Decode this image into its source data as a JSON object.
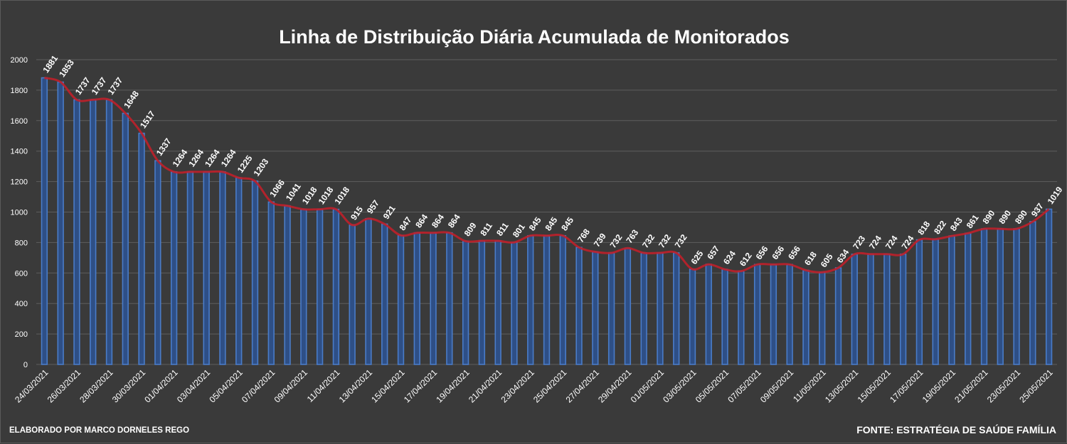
{
  "chart_data": {
    "type": "bar",
    "title": "Linha  de Distribuição Diária Acumulada de Monitorados",
    "xlabel": "",
    "ylabel": "",
    "ylim": [
      0,
      2000
    ],
    "y_ticks": [
      0,
      200,
      400,
      600,
      800,
      1000,
      1200,
      1400,
      1600,
      1800,
      2000
    ],
    "grid": true,
    "bar_color": "#4a7cc8",
    "trend_color": "#c0202a",
    "categories": [
      "24/03/2021",
      "25/03/2021",
      "26/03/2021",
      "27/03/2021",
      "28/03/2021",
      "29/03/2021",
      "30/03/2021",
      "31/03/2021",
      "01/04/2021",
      "02/04/2021",
      "03/04/2021",
      "04/04/2021",
      "05/04/2021",
      "06/04/2021",
      "07/04/2021",
      "08/04/2021",
      "09/04/2021",
      "10/04/2021",
      "11/04/2021",
      "12/04/2021",
      "13/04/2021",
      "14/04/2021",
      "15/04/2021",
      "16/04/2021",
      "17/04/2021",
      "18/04/2021",
      "19/04/2021",
      "20/04/2021",
      "21/04/2021",
      "22/04/2021",
      "23/04/2021",
      "24/04/2021",
      "25/04/2021",
      "26/04/2021",
      "27/04/2021",
      "28/04/2021",
      "29/04/2021",
      "30/04/2021",
      "01/05/2021",
      "02/05/2021",
      "03/05/2021",
      "04/05/2021",
      "05/05/2021",
      "06/05/2021",
      "07/05/2021",
      "08/05/2021",
      "09/05/2021",
      "10/05/2021",
      "11/05/2021",
      "12/05/2021",
      "13/05/2021",
      "14/05/2021",
      "15/05/2021",
      "16/05/2021",
      "17/05/2021",
      "18/05/2021",
      "19/05/2021",
      "20/05/2021",
      "21/05/2021",
      "22/05/2021",
      "23/05/2021",
      "24/05/2021",
      "25/05/2021"
    ],
    "x_tick_labels": [
      "24/03/2021",
      "26/03/2021",
      "28/03/2021",
      "30/03/2021",
      "01/04/2021",
      "03/04/2021",
      "05/04/2021",
      "07/04/2021",
      "09/04/2021",
      "11/04/2021",
      "13/04/2021",
      "15/04/2021",
      "17/04/2021",
      "19/04/2021",
      "21/04/2021",
      "23/04/2021",
      "25/04/2021",
      "27/04/2021",
      "29/04/2021",
      "01/05/2021",
      "03/05/2021",
      "05/05/2021",
      "07/05/2021",
      "09/05/2021",
      "11/05/2021",
      "13/05/2021",
      "15/05/2021",
      "17/05/2021",
      "19/05/2021",
      "21/05/2021",
      "23/05/2021",
      "25/05/2021"
    ],
    "values": [
      1881,
      1853,
      1737,
      1737,
      1737,
      1648,
      1517,
      1337,
      1264,
      1264,
      1264,
      1264,
      1225,
      1203,
      1066,
      1041,
      1018,
      1018,
      1018,
      915,
      957,
      921,
      847,
      864,
      864,
      864,
      809,
      811,
      811,
      801,
      845,
      845,
      845,
      768,
      739,
      732,
      763,
      732,
      732,
      732,
      625,
      657,
      624,
      612,
      656,
      656,
      656,
      618,
      605,
      634,
      723,
      724,
      724,
      724,
      818,
      822,
      843,
      861,
      890,
      890,
      890,
      937,
      1019
    ]
  },
  "footer": {
    "credit_left": "ELABORADO POR MARCO DORNELES REGO",
    "credit_right": "FONTE: ESTRATÉGIA DE SAÚDE FAMÍLIA"
  }
}
